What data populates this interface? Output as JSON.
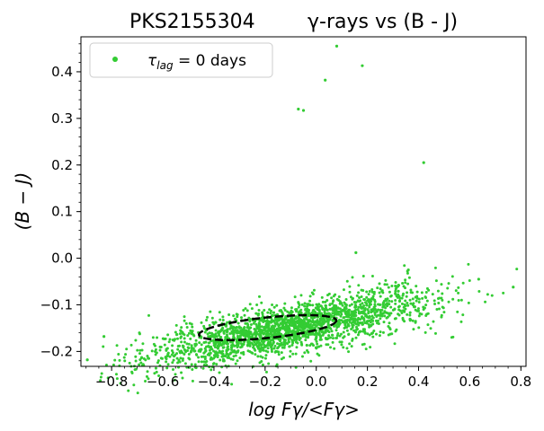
{
  "chart_data": {
    "type": "scatter",
    "title_left": "PKS2155304",
    "title_right": "γ-rays vs (B - J)",
    "xlabel": "log Fγ/<Fγ>",
    "ylabel": "(B − J)",
    "xlim": [
      -0.92,
      0.82
    ],
    "ylim": [
      -0.232,
      0.475
    ],
    "xticks": [
      -0.8,
      -0.6,
      -0.4,
      -0.2,
      0.0,
      0.2,
      0.4,
      0.6,
      0.8
    ],
    "xtick_labels": [
      "−0.8",
      "−0.6",
      "−0.4",
      "−0.2",
      "0.0",
      "0.2",
      "0.4",
      "0.6",
      "0.8"
    ],
    "yticks": [
      -0.2,
      -0.1,
      0.0,
      0.1,
      0.2,
      0.3,
      0.4
    ],
    "ytick_labels": [
      "−0.2",
      "−0.1",
      "0.0",
      "0.1",
      "0.2",
      "0.3",
      "0.4"
    ],
    "series": [
      {
        "name": "τlag = 0 days",
        "color": "#33cc33",
        "cloud": {
          "n": 2200,
          "x_range": [
            -0.85,
            0.8
          ],
          "x_center": -0.1,
          "x_sd": 0.28,
          "slope": 0.11,
          "intercept": -0.14,
          "y_sd": 0.025
        },
        "outliers": [
          {
            "x": -0.895,
            "y": -0.218
          },
          {
            "x": -0.83,
            "y": -0.168
          },
          {
            "x": -0.07,
            "y": 0.32
          },
          {
            "x": -0.05,
            "y": 0.317
          },
          {
            "x": 0.035,
            "y": 0.382
          },
          {
            "x": 0.08,
            "y": 0.455
          },
          {
            "x": 0.18,
            "y": 0.413
          },
          {
            "x": 0.42,
            "y": 0.205
          },
          {
            "x": 0.155,
            "y": 0.012
          },
          {
            "x": 0.36,
            "y": -0.025
          },
          {
            "x": 0.635,
            "y": -0.045
          },
          {
            "x": 0.77,
            "y": -0.062
          }
        ]
      }
    ],
    "ellipse": {
      "cx": -0.19,
      "cy": -0.149,
      "half_width": 0.27,
      "half_height": 0.022,
      "angle_deg": -6,
      "color": "#000000",
      "style": "dashed"
    },
    "legend": {
      "position": "top-left",
      "tau_symbol": "τ",
      "tau_subscript": "lag",
      "equals_text": " = 0  days"
    }
  }
}
